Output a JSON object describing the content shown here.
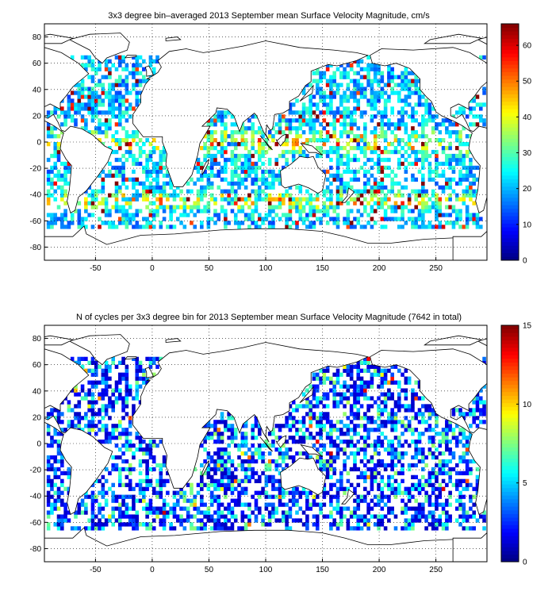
{
  "chart_data": [
    {
      "type": "heatmap",
      "title": "3x3 degree bin–averaged 2013 September mean Surface Velocity Magnitude, cm/s",
      "xlabel": "",
      "ylabel": "",
      "xlim": [
        -95,
        295
      ],
      "ylim": [
        -90,
        90
      ],
      "xticks": [
        -50,
        0,
        50,
        100,
        150,
        200,
        250
      ],
      "yticks": [
        -80,
        -60,
        -40,
        -20,
        0,
        20,
        40,
        60,
        80
      ],
      "grid": true,
      "colormap": "jet",
      "colorbar": {
        "min": 0,
        "max": 66,
        "ticks": [
          0,
          10,
          20,
          30,
          40,
          50,
          60
        ]
      },
      "bin_size_deg": 3,
      "coverage_lat": [
        -66,
        66
      ],
      "seed": 13
    },
    {
      "type": "heatmap",
      "title": "N of cycles per 3x3 degree bin for 2013 September mean Surface Velocity Magnitude (7642 in total)",
      "xlabel": "",
      "ylabel": "",
      "xlim": [
        -95,
        295
      ],
      "ylim": [
        -90,
        90
      ],
      "xticks": [
        -50,
        0,
        50,
        100,
        150,
        200,
        250
      ],
      "yticks": [
        -80,
        -60,
        -40,
        -20,
        0,
        20,
        40,
        60,
        80
      ],
      "grid": true,
      "colormap": "jet",
      "colorbar": {
        "min": 0,
        "max": 15,
        "ticks": [
          0,
          5,
          10,
          15
        ]
      },
      "bin_size_deg": 3,
      "total_cycles": 7642,
      "coverage_lat": [
        -66,
        66
      ],
      "seed": 29
    }
  ]
}
